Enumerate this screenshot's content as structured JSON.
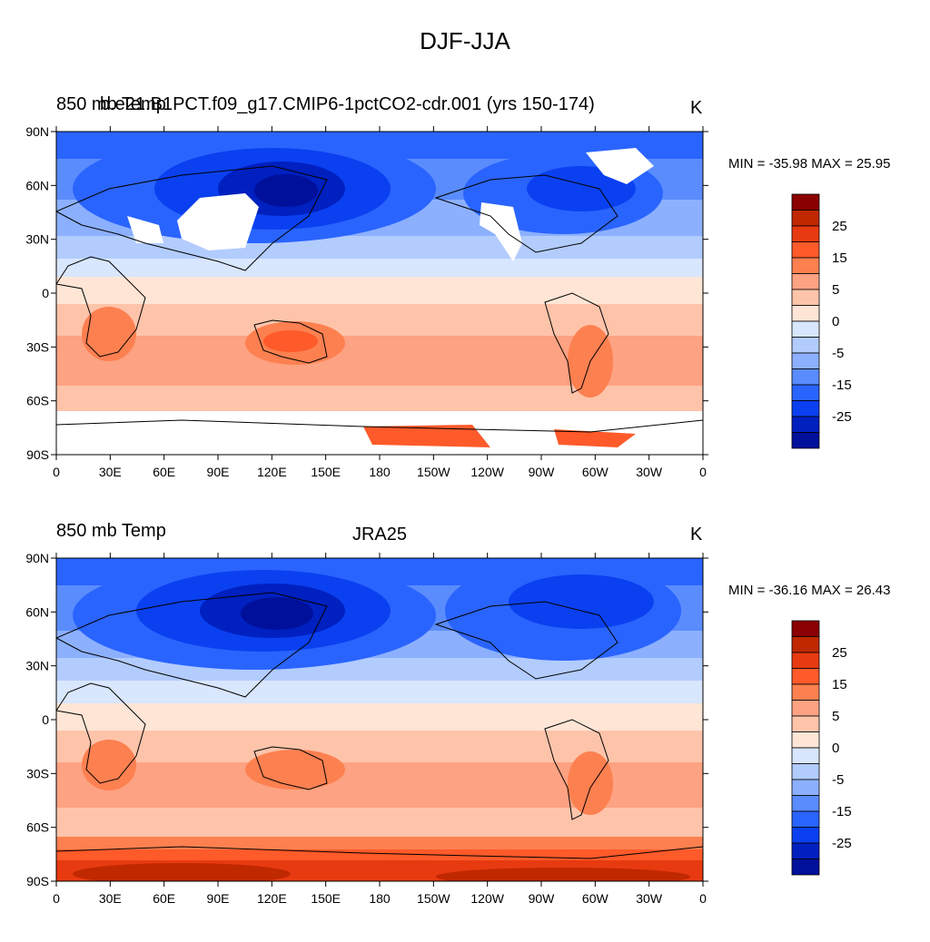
{
  "title": "DJF-JJA",
  "panels": [
    {
      "left_title": "850 mb Temp",
      "center_title": "b.e21.B1PCT.f09_g17.CMIP6-1pctCO2-cdr.001 (yrs 150-174)",
      "units": "K",
      "stats": "MIN = -35.98 MAX =  25.95"
    },
    {
      "left_title": "850 mb Temp",
      "center_title": "JRA25",
      "units": "K",
      "stats": "MIN = -36.16 MAX =  26.43"
    }
  ],
  "lat_ticks": [
    "90N",
    "60N",
    "30N",
    "0",
    "30S",
    "60S",
    "90S"
  ],
  "lon_ticks": [
    "0",
    "30E",
    "60E",
    "90E",
    "120E",
    "150E",
    "180",
    "150W",
    "120W",
    "90W",
    "60W",
    "30W",
    "0"
  ],
  "colorbar": {
    "labels": [
      "25",
      "15",
      "5",
      "0",
      "-5",
      "-15",
      "-25"
    ],
    "colors_top_to_bottom": [
      "#8b0000",
      "#c02800",
      "#e83a10",
      "#fe5a2a",
      "#fd8050",
      "#fda282",
      "#fec4aa",
      "#ffe5d6",
      "#d8e6fe",
      "#b2ccfe",
      "#8cb0fe",
      "#5a8cfe",
      "#2a64fe",
      "#0a40f0",
      "#0020c0",
      "#00109a"
    ]
  },
  "map_colors": {
    "ocean_land_mask_white": "#ffffff",
    "coast": "#000000"
  }
}
